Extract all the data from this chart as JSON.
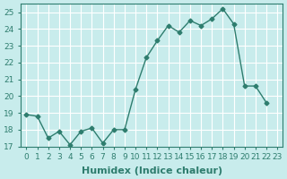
{
  "x": [
    0,
    1,
    2,
    3,
    4,
    5,
    6,
    7,
    8,
    9,
    10,
    11,
    12,
    13,
    14,
    15,
    16,
    17,
    18,
    19,
    20,
    21,
    22
  ],
  "y": [
    18.9,
    18.8,
    17.5,
    17.9,
    17.1,
    17.9,
    18.1,
    17.2,
    18.0,
    18.0,
    20.4,
    22.3,
    23.3,
    24.2,
    23.8,
    24.5,
    24.2,
    24.6,
    25.2,
    24.3,
    20.6,
    20.6,
    19.6
  ],
  "line_color": "#2e7d6e",
  "marker": "D",
  "marker_size": 2.5,
  "bg_color": "#c8ecec",
  "grid_color": "#ffffff",
  "xlabel": "Humidex (Indice chaleur)",
  "ylim": [
    17,
    25.5
  ],
  "xlim": [
    -0.5,
    23.5
  ],
  "yticks": [
    17,
    18,
    19,
    20,
    21,
    22,
    23,
    24,
    25
  ],
  "xticks": [
    0,
    1,
    2,
    3,
    4,
    5,
    6,
    7,
    8,
    9,
    10,
    11,
    12,
    13,
    14,
    15,
    16,
    17,
    18,
    19,
    20,
    21,
    22,
    23
  ],
  "tick_color": "#2e7d6e",
  "label_fontsize": 8,
  "tick_fontsize": 6.5
}
